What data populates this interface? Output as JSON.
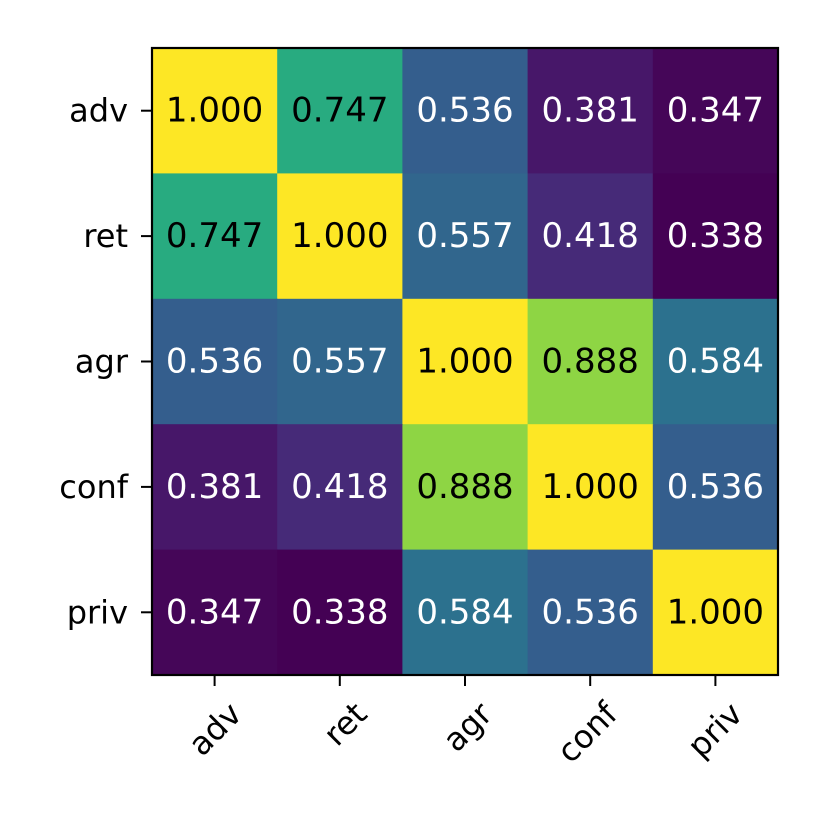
{
  "chart_data": {
    "type": "heatmap",
    "title": "",
    "xlabel": "",
    "ylabel": "",
    "x_categories": [
      "adv",
      "ret",
      "agr",
      "conf",
      "priv"
    ],
    "y_categories": [
      "adv",
      "ret",
      "agr",
      "conf",
      "priv"
    ],
    "values": [
      [
        1.0,
        0.747,
        0.536,
        0.381,
        0.347
      ],
      [
        0.747,
        1.0,
        0.557,
        0.418,
        0.338
      ],
      [
        0.536,
        0.557,
        1.0,
        0.888,
        0.584
      ],
      [
        0.381,
        0.418,
        0.888,
        1.0,
        0.536
      ],
      [
        0.347,
        0.338,
        0.584,
        0.536,
        1.0
      ]
    ],
    "value_format": "0.000",
    "colormap": "viridis",
    "value_range": [
      0.338,
      1.0
    ],
    "x_tick_rotation": "45 degrees",
    "colorbar": false,
    "grid": false
  }
}
